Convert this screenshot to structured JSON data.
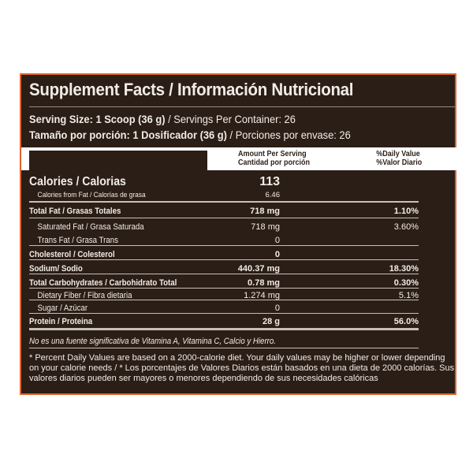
{
  "title": "Supplement Facts / Información Nutricional",
  "serving": {
    "en_bold": "Serving Size: 1 Scoop (36 g)",
    "en_rest": " / Servings Per Container: 26",
    "es_bold": "Tamaño por porción: 1 Dosificador (36 g)",
    "es_rest": " / Porciones por envase: 26"
  },
  "header": {
    "amount": "Amount Per Serving",
    "amount_es": "Cantidad por porción",
    "dv": "%Daily Value",
    "dv_es": "%Valor Diario"
  },
  "calories": {
    "label": "Calories / Calorias",
    "value": "113",
    "fat_label": "Calories from Fat / Calorías de grasa",
    "fat_value": "6.46"
  },
  "rows": [
    {
      "label": "Total Fat / Grasas Totales",
      "amount": "718 mg",
      "dv": "1.10%"
    },
    {
      "label": "Saturated Fat / Grasa Saturada",
      "amount": "718 mg",
      "dv": "3.60%"
    },
    {
      "label": "Trans Fat / Grasa Trans",
      "amount": "0",
      "dv": ""
    },
    {
      "label": "Cholesterol / Colesterol",
      "amount": "0",
      "dv": ""
    },
    {
      "label": "Sodium/ Sodio",
      "amount": "440.37 mg",
      "dv": "18.30%"
    },
    {
      "label": "Total Carbohydrates / Carbohidrato Total",
      "amount": "0.78 mg",
      "dv": "0.30%"
    },
    {
      "label": "Dietary Fiber / Fibra dietaria",
      "amount": "1.274 mg",
      "dv": "5.1%"
    },
    {
      "label": "Sugar / Azúcar",
      "amount": "0",
      "dv": ""
    },
    {
      "label": "Protein / Proteina",
      "amount": "28 g",
      "dv": "56.0%"
    }
  ],
  "note": "No es una fuente significativa de  Vitamina A, Vitamina C, Calcio y Hierro.",
  "footnote": "* Percent Daily Values are based on a 2000-calorie diet. Your daily values may be higher or lower depending on your calorie needs / * Los porcentajes de Valores Diarios están basados en una dieta de 2000 calorías. Sus valores diarios pueden ser mayores o menores dependiendo de sus necesidades calóricas",
  "colors": {
    "background": "#2b1e17",
    "border": "#e0642a"
  }
}
